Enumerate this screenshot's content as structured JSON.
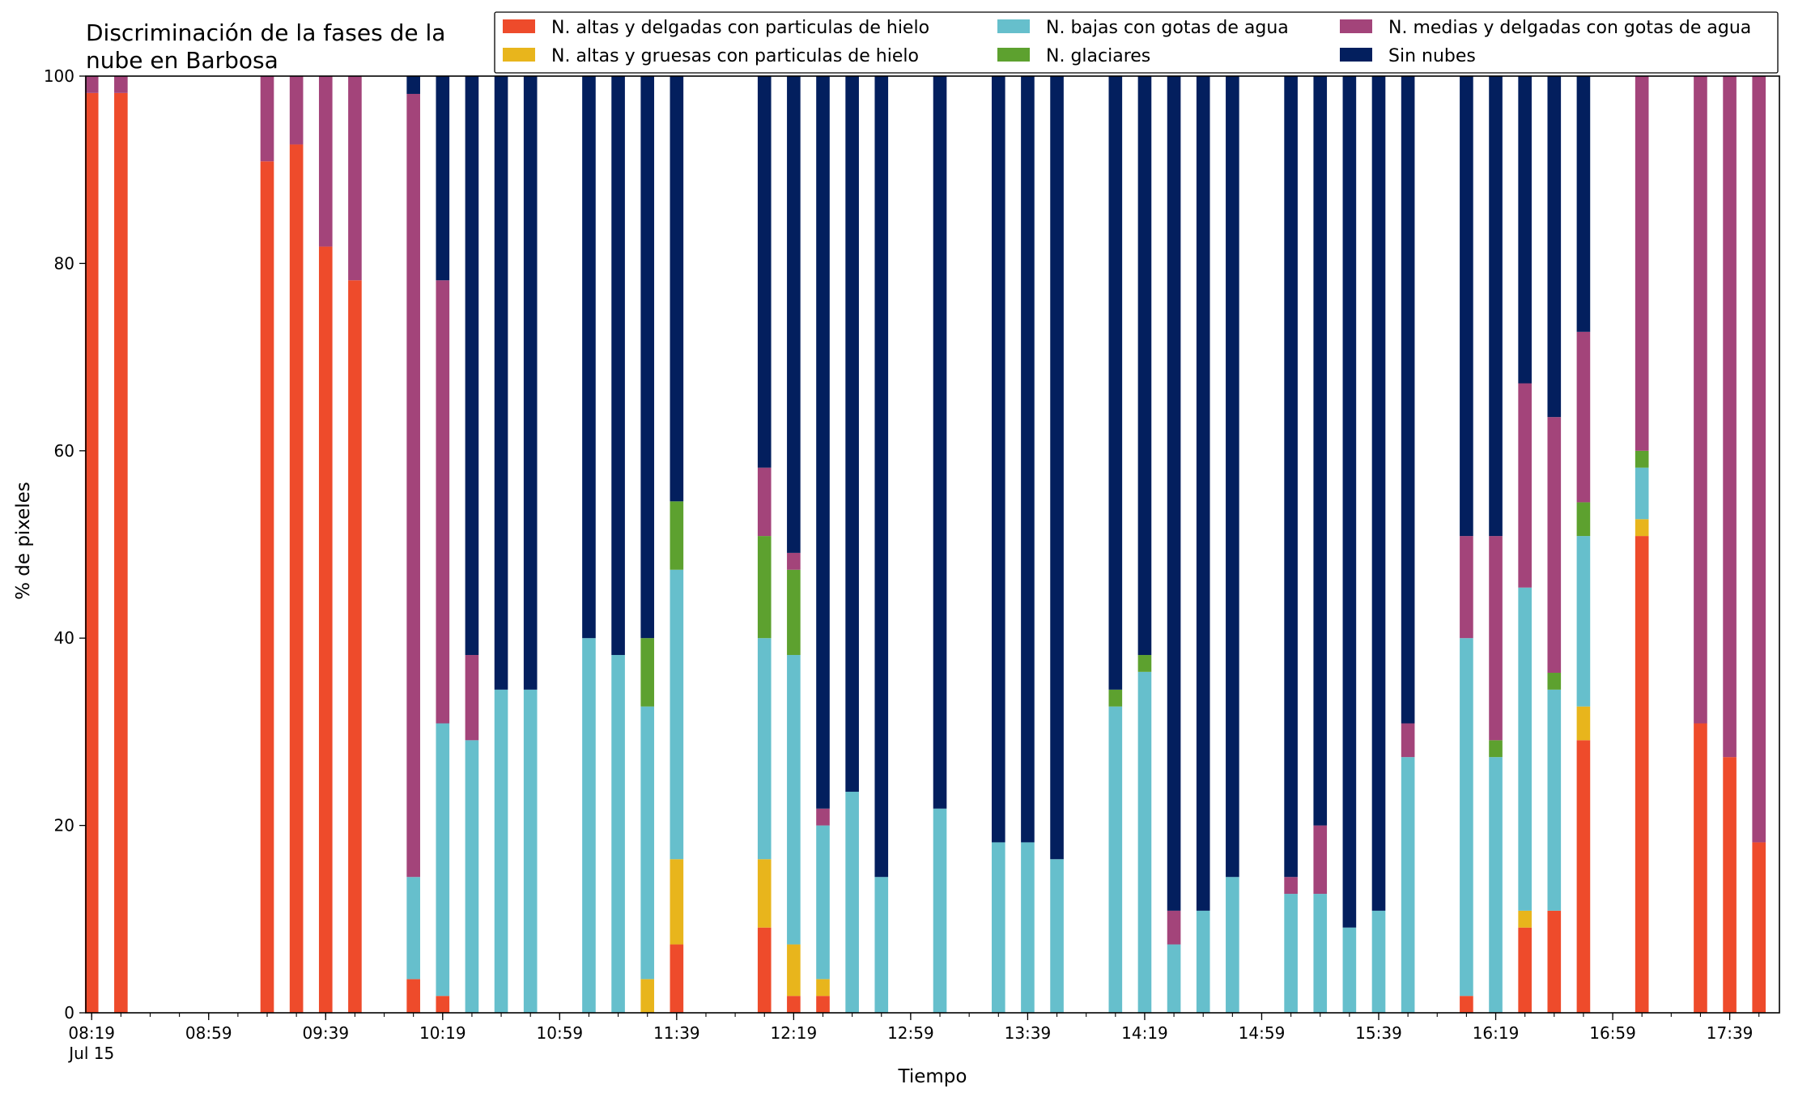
{
  "colors": {
    "high_thin_ice": "#ee4b2b",
    "high_thick_ice": "#e8b51c",
    "low_water": "#66bfcc",
    "glacier": "#5da12f",
    "mid_thin_water": "#a3447a",
    "clear": "#031f5e"
  },
  "chart_data": {
    "type": "bar",
    "stacked": true,
    "title": "Discriminación de la fases de la nube en Barbosa",
    "title_lines": [
      "Discriminación de la fases de la",
      "nube en Barbosa"
    ],
    "xlabel": "Tiempo",
    "ylabel": "% de pixeles",
    "ylim": [
      0,
      100
    ],
    "yticks": [
      0,
      20,
      40,
      60,
      80,
      100
    ],
    "x_minutes_range": [
      -4,
      1154
    ],
    "xtick_labels": [
      {
        "minute": 0,
        "text": "08:19",
        "sub": "Jul 15"
      },
      {
        "minute": 80,
        "text": "08:59"
      },
      {
        "minute": 160,
        "text": "09:39"
      },
      {
        "minute": 240,
        "text": "10:19"
      },
      {
        "minute": 320,
        "text": "10:59"
      },
      {
        "minute": 400,
        "text": "11:39"
      },
      {
        "minute": 480,
        "text": "12:19"
      },
      {
        "minute": 560,
        "text": "12:59"
      },
      {
        "minute": 640,
        "text": "13:39"
      },
      {
        "minute": 720,
        "text": "14:19"
      },
      {
        "minute": 800,
        "text": "14:59"
      },
      {
        "minute": 880,
        "text": "15:39"
      },
      {
        "minute": 960,
        "text": "16:19"
      },
      {
        "minute": 1040,
        "text": "16:59"
      },
      {
        "minute": 1120,
        "text": "17:39"
      }
    ],
    "minor_tick_step_minutes": 20,
    "bar_width_minutes": 10,
    "legend": {
      "placement": "top-right",
      "columns": 3
    },
    "series": [
      {
        "key": "high_thin_ice",
        "name": "N. altas y delgadas con particulas de hielo"
      },
      {
        "key": "high_thick_ice",
        "name": "N. altas y gruesas con particulas de hielo"
      },
      {
        "key": "low_water",
        "name": "N. bajas con gotas de agua"
      },
      {
        "key": "glacier",
        "name": "N. glaciares"
      },
      {
        "key": "mid_thin_water",
        "name": "N. medias y delgadas con gotas de agua"
      },
      {
        "key": "clear",
        "name": "Sin nubes"
      }
    ],
    "legend_order": [
      "high_thin_ice",
      "high_thick_ice",
      "low_water",
      "glacier",
      "mid_thin_water",
      "clear"
    ],
    "bars": [
      {
        "time": "08:19",
        "minute": 0,
        "values": [
          98.2,
          0,
          0,
          0,
          1.8,
          0
        ]
      },
      {
        "time": "08:29",
        "minute": 20,
        "values": [
          98.2,
          0,
          0,
          0,
          1.8,
          0
        ]
      },
      {
        "time": "09:19",
        "minute": 120,
        "values": [
          90.9,
          0,
          0,
          0,
          9.1,
          0
        ]
      },
      {
        "time": "09:29",
        "minute": 140,
        "values": [
          92.7,
          0,
          0,
          0,
          7.3,
          0
        ]
      },
      {
        "time": "09:39",
        "minute": 160,
        "values": [
          81.8,
          0,
          0,
          0,
          18.2,
          0
        ]
      },
      {
        "time": "09:49",
        "minute": 180,
        "values": [
          78.2,
          0,
          0,
          0,
          21.8,
          0
        ]
      },
      {
        "time": "10:09",
        "minute": 220,
        "values": [
          3.6,
          0,
          10.9,
          0,
          83.6,
          1.9
        ]
      },
      {
        "time": "10:19",
        "minute": 240,
        "values": [
          1.8,
          0,
          29.1,
          0,
          47.3,
          21.8
        ]
      },
      {
        "time": "10:29",
        "minute": 260,
        "values": [
          0,
          0,
          29.1,
          0,
          9.1,
          61.8
        ]
      },
      {
        "time": "10:39",
        "minute": 280,
        "values": [
          0,
          0,
          34.5,
          0,
          0,
          65.5
        ]
      },
      {
        "time": "10:49",
        "minute": 300,
        "values": [
          0,
          0,
          34.5,
          0,
          0,
          65.5
        ]
      },
      {
        "time": "11:09",
        "minute": 340,
        "values": [
          0,
          0,
          40.0,
          0,
          0,
          60.0
        ]
      },
      {
        "time": "11:19",
        "minute": 360,
        "values": [
          0,
          0,
          38.2,
          0,
          0,
          61.8
        ]
      },
      {
        "time": "11:29",
        "minute": 380,
        "values": [
          0,
          3.6,
          29.1,
          7.3,
          0,
          60.0
        ]
      },
      {
        "time": "11:39",
        "minute": 400,
        "values": [
          7.3,
          9.1,
          30.9,
          7.3,
          0,
          45.4
        ]
      },
      {
        "time": "12:09",
        "minute": 460,
        "values": [
          9.1,
          7.3,
          23.6,
          10.9,
          7.3,
          41.8
        ]
      },
      {
        "time": "12:19",
        "minute": 480,
        "values": [
          1.8,
          5.5,
          30.9,
          9.1,
          1.8,
          50.9
        ]
      },
      {
        "time": "12:29",
        "minute": 500,
        "values": [
          1.8,
          1.8,
          16.4,
          0,
          1.8,
          78.2
        ]
      },
      {
        "time": "12:39",
        "minute": 520,
        "values": [
          0,
          0,
          23.6,
          0,
          0,
          76.4
        ]
      },
      {
        "time": "12:49",
        "minute": 540,
        "values": [
          0,
          0,
          14.5,
          0,
          0,
          85.5
        ]
      },
      {
        "time": "13:09",
        "minute": 580,
        "values": [
          0,
          0,
          21.8,
          0,
          0,
          78.2
        ]
      },
      {
        "time": "13:29",
        "minute": 620,
        "values": [
          0,
          0,
          18.2,
          0,
          0,
          81.8
        ]
      },
      {
        "time": "13:39",
        "minute": 640,
        "values": [
          0,
          0,
          18.2,
          0,
          0,
          81.8
        ]
      },
      {
        "time": "13:49",
        "minute": 660,
        "values": [
          0,
          0,
          16.4,
          0,
          0,
          83.6
        ]
      },
      {
        "time": "14:09",
        "minute": 700,
        "values": [
          0,
          0,
          32.7,
          1.8,
          0,
          65.5
        ]
      },
      {
        "time": "14:19",
        "minute": 720,
        "values": [
          0,
          0,
          36.4,
          1.8,
          0,
          61.8
        ]
      },
      {
        "time": "14:29",
        "minute": 740,
        "values": [
          0,
          0,
          7.3,
          0,
          3.6,
          89.1
        ]
      },
      {
        "time": "14:39",
        "minute": 760,
        "values": [
          0,
          0,
          10.9,
          0,
          0,
          89.1
        ]
      },
      {
        "time": "14:49",
        "minute": 780,
        "values": [
          0,
          0,
          14.5,
          0,
          0,
          85.5
        ]
      },
      {
        "time": "15:09",
        "minute": 820,
        "values": [
          0,
          0,
          12.7,
          0,
          1.8,
          85.5
        ]
      },
      {
        "time": "15:19",
        "minute": 840,
        "values": [
          0,
          0,
          12.7,
          0,
          7.3,
          80.0
        ]
      },
      {
        "time": "15:29",
        "minute": 860,
        "values": [
          0,
          0,
          9.1,
          0,
          0,
          90.9
        ]
      },
      {
        "time": "15:39",
        "minute": 880,
        "values": [
          0,
          0,
          10.9,
          0,
          0,
          89.1
        ]
      },
      {
        "time": "15:49",
        "minute": 900,
        "values": [
          0,
          0,
          27.3,
          0,
          3.6,
          69.1
        ]
      },
      {
        "time": "16:09",
        "minute": 940,
        "values": [
          1.8,
          0,
          38.2,
          0,
          10.9,
          49.1
        ]
      },
      {
        "time": "16:19",
        "minute": 960,
        "values": [
          0,
          0,
          27.3,
          1.8,
          21.8,
          49.1
        ]
      },
      {
        "time": "16:29",
        "minute": 980,
        "values": [
          9.1,
          1.8,
          34.5,
          0,
          21.8,
          32.8
        ]
      },
      {
        "time": "16:39",
        "minute": 1000,
        "values": [
          10.9,
          0,
          23.6,
          1.8,
          27.3,
          36.4
        ]
      },
      {
        "time": "16:49",
        "minute": 1020,
        "values": [
          29.1,
          3.6,
          18.2,
          3.6,
          18.2,
          27.3
        ]
      },
      {
        "time": "17:09",
        "minute": 1060,
        "values": [
          50.9,
          1.8,
          5.5,
          1.8,
          40.0,
          0
        ]
      },
      {
        "time": "17:29",
        "minute": 1100,
        "values": [
          30.9,
          0,
          0,
          0,
          69.1,
          0
        ]
      },
      {
        "time": "17:39",
        "minute": 1120,
        "values": [
          27.3,
          0,
          0,
          0,
          72.7,
          0
        ]
      },
      {
        "time": "17:49",
        "minute": 1140,
        "values": [
          18.2,
          0,
          0,
          0,
          81.8,
          0
        ]
      }
    ]
  }
}
